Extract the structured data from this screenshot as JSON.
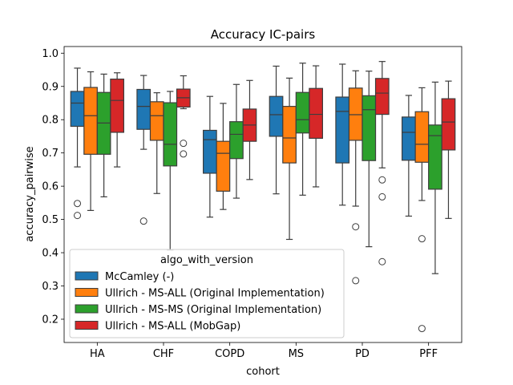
{
  "chart_data": {
    "type": "box",
    "title": "Accuracy IC-pairs",
    "xlabel": "cohort",
    "ylabel": "accuracy_pairwise",
    "ylim": [
      0.13,
      1.02
    ],
    "yticks": [
      "0.2",
      "0.3",
      "0.4",
      "0.5",
      "0.6",
      "0.7",
      "0.8",
      "0.9",
      "1.0"
    ],
    "categories": [
      "HA",
      "CHF",
      "COPD",
      "MS",
      "PD",
      "PFF"
    ],
    "legend": {
      "title": "algo_with_version",
      "placement": "lower-left"
    },
    "series": [
      {
        "name": "McCamley (-)",
        "color": "#1f77b4",
        "boxes": [
          {
            "min": 0.658,
            "q1": 0.78,
            "median": 0.85,
            "q3": 0.885,
            "max": 0.955,
            "outliers": [
              0.548,
              0.512
            ]
          },
          {
            "min": 0.711,
            "q1": 0.771,
            "median": 0.84,
            "q3": 0.891,
            "max": 0.933,
            "outliers": [
              0.495
            ]
          },
          {
            "min": 0.507,
            "q1": 0.639,
            "median": 0.74,
            "q3": 0.768,
            "max": 0.87,
            "outliers": []
          },
          {
            "min": 0.577,
            "q1": 0.75,
            "median": 0.815,
            "q3": 0.87,
            "max": 0.961,
            "outliers": []
          },
          {
            "min": 0.543,
            "q1": 0.67,
            "median": 0.825,
            "q3": 0.868,
            "max": 0.967,
            "outliers": []
          },
          {
            "min": 0.51,
            "q1": 0.678,
            "median": 0.762,
            "q3": 0.808,
            "max": 0.873,
            "outliers": []
          }
        ]
      },
      {
        "name": "Ullrich - MS-ALL (Original Implementation)",
        "color": "#ff7f0e",
        "boxes": [
          {
            "min": 0.527,
            "q1": 0.696,
            "median": 0.812,
            "q3": 0.897,
            "max": 0.944,
            "outliers": []
          },
          {
            "min": 0.578,
            "q1": 0.738,
            "median": 0.812,
            "q3": 0.854,
            "max": 0.881,
            "outliers": []
          },
          {
            "min": 0.53,
            "q1": 0.585,
            "median": 0.699,
            "q3": 0.735,
            "max": 0.849,
            "outliers": []
          },
          {
            "min": 0.44,
            "q1": 0.67,
            "median": 0.745,
            "q3": 0.84,
            "max": 0.925,
            "outliers": []
          },
          {
            "min": 0.54,
            "q1": 0.738,
            "median": 0.815,
            "q3": 0.895,
            "max": 0.947,
            "outliers": [
              0.478,
              0.316
            ]
          },
          {
            "min": 0.557,
            "q1": 0.672,
            "median": 0.726,
            "q3": 0.824,
            "max": 0.896,
            "outliers": [
              0.442,
              0.172
            ]
          }
        ]
      },
      {
        "name": "Ullrich - MS-MS (Original Implementation)",
        "color": "#2ca02c",
        "boxes": [
          {
            "min": 0.568,
            "q1": 0.696,
            "median": 0.79,
            "q3": 0.882,
            "max": 0.937,
            "outliers": []
          },
          {
            "min": 0.408,
            "q1": 0.661,
            "median": 0.726,
            "q3": 0.851,
            "max": 0.885,
            "outliers": []
          },
          {
            "min": 0.564,
            "q1": 0.683,
            "median": 0.756,
            "q3": 0.794,
            "max": 0.906,
            "outliers": []
          },
          {
            "min": 0.573,
            "q1": 0.76,
            "median": 0.8,
            "q3": 0.882,
            "max": 0.97,
            "outliers": []
          },
          {
            "min": 0.418,
            "q1": 0.677,
            "median": 0.83,
            "q3": 0.872,
            "max": 0.946,
            "outliers": []
          },
          {
            "min": 0.337,
            "q1": 0.591,
            "median": 0.752,
            "q3": 0.784,
            "max": 0.913,
            "outliers": []
          }
        ]
      },
      {
        "name": "Ullrich - MS-ALL (MobGap)",
        "color": "#d62728",
        "boxes": [
          {
            "min": 0.658,
            "q1": 0.762,
            "median": 0.858,
            "q3": 0.922,
            "max": 0.941,
            "outliers": []
          },
          {
            "min": 0.833,
            "q1": 0.838,
            "median": 0.866,
            "q3": 0.892,
            "max": 0.932,
            "outliers": [
              0.729,
              0.697
            ]
          },
          {
            "min": 0.62,
            "q1": 0.735,
            "median": 0.784,
            "q3": 0.832,
            "max": 0.918,
            "outliers": []
          },
          {
            "min": 0.598,
            "q1": 0.744,
            "median": 0.816,
            "q3": 0.894,
            "max": 0.962,
            "outliers": []
          },
          {
            "min": 0.655,
            "q1": 0.816,
            "median": 0.88,
            "q3": 0.924,
            "max": 0.975,
            "outliers": [
              0.619,
              0.568,
              0.373
            ]
          },
          {
            "min": 0.503,
            "q1": 0.709,
            "median": 0.793,
            "q3": 0.863,
            "max": 0.916,
            "outliers": []
          }
        ]
      }
    ]
  }
}
